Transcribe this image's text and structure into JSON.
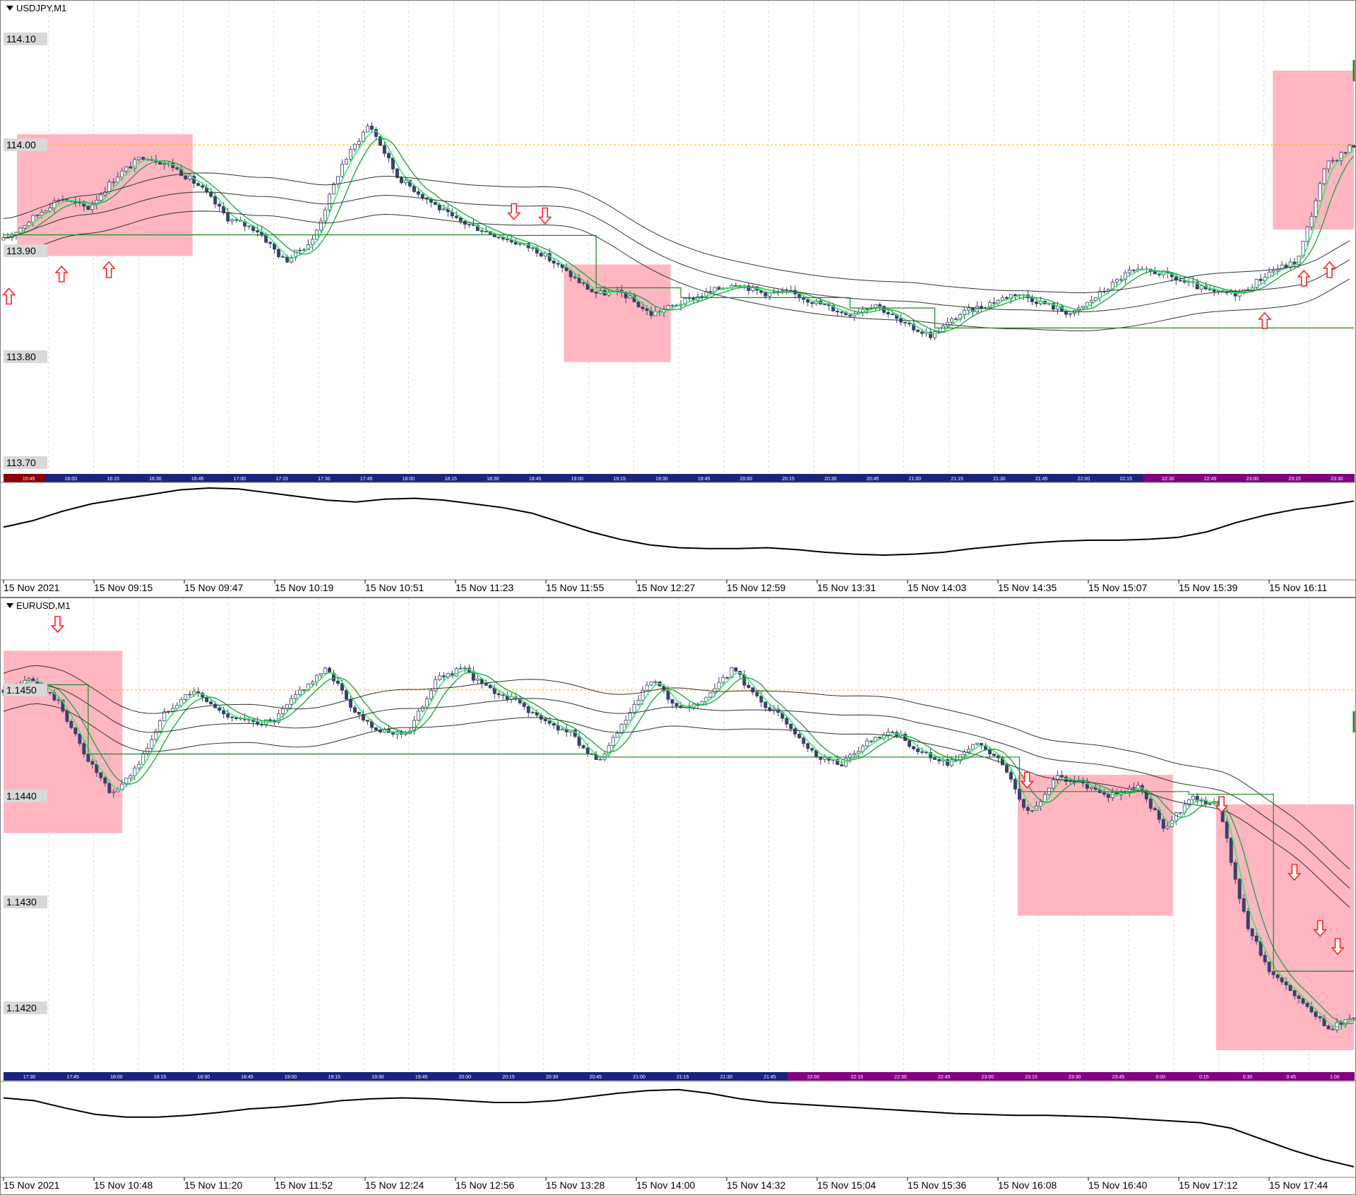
{
  "colors": {
    "candle": "#3a3f6e",
    "ma_fast": "#33ee66",
    "ma_slow": "#22aa44",
    "envelope": "#333333",
    "step_line": "#1a8a1a",
    "zone": "#ffb6c1",
    "arrow": "#ff2222",
    "price_level": "#ffb000",
    "session_bar_a": "#1a237e",
    "session_bar_b": "#800080"
  },
  "icons": {
    "up_arrow": "up-arrow-icon",
    "down_arrow": "down-arrow-icon",
    "collapse": "triangle-down-icon"
  },
  "charts": [
    {
      "symbol": "USDJPY,M1",
      "y_labels": [
        "114.10",
        "114.00",
        "113.90",
        "113.80",
        "113.70"
      ],
      "y_values": [
        114.1,
        114.0,
        113.9,
        113.8,
        113.7
      ],
      "price_line": 114.0,
      "session_labels": [
        "15:45",
        "16:00",
        "16:15",
        "16:30",
        "16:45",
        "17:00",
        "17:15",
        "17:30",
        "17:45",
        "18:00",
        "18:15",
        "18:30",
        "18:45",
        "19:00",
        "19:15",
        "19:30",
        "19:45",
        "20:00",
        "20:15",
        "20:30",
        "20:45",
        "21:00",
        "21:15",
        "21:30",
        "21:45",
        "22:00",
        "22:15",
        "22:30",
        "22:45",
        "23:00",
        "23:15",
        "23:30"
      ],
      "time_labels": [
        "15 Nov 2021",
        "15 Nov 09:15",
        "15 Nov 09:47",
        "15 Nov 10:19",
        "15 Nov 10:51",
        "15 Nov 11:23",
        "15 Nov 11:55",
        "15 Nov 12:27",
        "15 Nov 12:59",
        "15 Nov 13:31",
        "15 Nov 14:03",
        "15 Nov 14:35",
        "15 Nov 15:07",
        "15 Nov 15:39",
        "15 Nov 16:11"
      ],
      "price_path": [
        113.91,
        113.93,
        113.95,
        113.94,
        113.97,
        113.99,
        113.98,
        113.96,
        113.93,
        113.92,
        113.89,
        113.91,
        113.98,
        114.02,
        113.97,
        113.95,
        113.93,
        113.92,
        113.91,
        113.9,
        113.88,
        113.86,
        113.86,
        113.84,
        113.85,
        113.86,
        113.87,
        113.86,
        113.86,
        113.85,
        113.84,
        113.85,
        113.83,
        113.82,
        113.84,
        113.85,
        113.86,
        113.85,
        113.84,
        113.86,
        113.88,
        113.88,
        113.87,
        113.86,
        113.86,
        113.88,
        113.89,
        113.98,
        114.0
      ],
      "oscillator": [
        0.55,
        0.62,
        0.72,
        0.8,
        0.85,
        0.9,
        0.95,
        0.97,
        0.96,
        0.92,
        0.88,
        0.84,
        0.82,
        0.85,
        0.86,
        0.84,
        0.8,
        0.76,
        0.7,
        0.6,
        0.5,
        0.42,
        0.36,
        0.33,
        0.32,
        0.32,
        0.33,
        0.31,
        0.28,
        0.26,
        0.25,
        0.26,
        0.28,
        0.32,
        0.35,
        0.38,
        0.4,
        0.41,
        0.41,
        0.42,
        0.44,
        0.5,
        0.6,
        0.68,
        0.74,
        0.78,
        0.83
      ],
      "zones": [
        {
          "t0": 0.01,
          "t1": 0.14,
          "p_top": 114.01,
          "p_bot": 113.895
        },
        {
          "t0": 0.415,
          "t1": 0.494,
          "p_top": 113.887,
          "p_bot": 113.795
        },
        {
          "t0": 0.94,
          "t1": 1.0,
          "p_top": 114.07,
          "p_bot": 113.92
        }
      ],
      "arrows": [
        {
          "dir": "up",
          "t": 0.004,
          "p": 113.857
        },
        {
          "dir": "up",
          "t": 0.043,
          "p": 113.878
        },
        {
          "dir": "up",
          "t": 0.078,
          "p": 113.882
        },
        {
          "dir": "down",
          "t": 0.378,
          "p": 113.937
        },
        {
          "dir": "down",
          "t": 0.401,
          "p": 113.933
        },
        {
          "dir": "up",
          "t": 0.934,
          "p": 113.834
        },
        {
          "dir": "up",
          "t": 0.963,
          "p": 113.874
        },
        {
          "dir": "up",
          "t": 0.982,
          "p": 113.882
        }
      ]
    },
    {
      "symbol": "EURUSD,M1",
      "y_labels": [
        "1.1450",
        "1.1440",
        "1.1430",
        "1.1420"
      ],
      "y_values": [
        1.145,
        1.144,
        1.143,
        1.142
      ],
      "price_line": 1.145,
      "session_labels": [
        "17:30",
        "17:45",
        "18:00",
        "18:15",
        "18:30",
        "18:45",
        "19:00",
        "19:15",
        "19:30",
        "19:45",
        "20:00",
        "20:15",
        "20:30",
        "20:45",
        "21:00",
        "21:15",
        "21:30",
        "21:45",
        "22:00",
        "22:15",
        "22:30",
        "22:45",
        "23:00",
        "23:15",
        "23:30",
        "23:45",
        "0:00",
        "0:15",
        "0:30",
        "0:45",
        "1:00"
      ],
      "time_labels": [
        "15 Nov 2021",
        "15 Nov 10:48",
        "15 Nov 11:20",
        "15 Nov 11:52",
        "15 Nov 12:24",
        "15 Nov 12:56",
        "15 Nov 13:28",
        "15 Nov 14:00",
        "15 Nov 14:32",
        "15 Nov 15:04",
        "15 Nov 15:36",
        "15 Nov 16:08",
        "15 Nov 16:40",
        "15 Nov 17:12",
        "15 Nov 17:44"
      ],
      "price_path": [
        1.145,
        1.1451,
        1.1449,
        1.1444,
        1.144,
        1.1443,
        1.1448,
        1.145,
        1.1448,
        1.1447,
        1.1447,
        1.145,
        1.1452,
        1.1448,
        1.1446,
        1.1446,
        1.1451,
        1.1452,
        1.145,
        1.1449,
        1.1447,
        1.1446,
        1.1443,
        1.1447,
        1.1451,
        1.1448,
        1.1449,
        1.1452,
        1.1449,
        1.1447,
        1.1444,
        1.1443,
        1.1445,
        1.1446,
        1.1444,
        1.1443,
        1.1445,
        1.1443,
        1.1438,
        1.1442,
        1.1441,
        1.144,
        1.1441,
        1.1437,
        1.144,
        1.1439,
        1.1428,
        1.1423,
        1.1421,
        1.1418,
        1.1419
      ],
      "oscillator": [
        0.85,
        0.82,
        0.74,
        0.67,
        0.64,
        0.64,
        0.66,
        0.69,
        0.73,
        0.75,
        0.78,
        0.82,
        0.84,
        0.85,
        0.84,
        0.82,
        0.8,
        0.8,
        0.82,
        0.86,
        0.9,
        0.93,
        0.94,
        0.9,
        0.84,
        0.8,
        0.78,
        0.76,
        0.74,
        0.72,
        0.7,
        0.68,
        0.67,
        0.66,
        0.66,
        0.65,
        0.64,
        0.62,
        0.6,
        0.58,
        0.52,
        0.4,
        0.28,
        0.18,
        0.1
      ],
      "zones": [
        {
          "t0": 0.0,
          "t1": 0.088,
          "p_top": 1.14537,
          "p_bot": 1.14365
        },
        {
          "t0": 0.751,
          "t1": 0.866,
          "p_top": 1.1442,
          "p_bot": 1.14287
        },
        {
          "t0": 0.898,
          "t1": 1.0,
          "p_top": 1.14392,
          "p_bot": 1.1416
        }
      ],
      "arrows": [
        {
          "dir": "down",
          "t": 0.04,
          "p": 1.14562
        },
        {
          "dir": "down",
          "t": 0.758,
          "p": 1.14415
        },
        {
          "dir": "down",
          "t": 0.902,
          "p": 1.14392
        },
        {
          "dir": "down",
          "t": 0.956,
          "p": 1.14328
        },
        {
          "dir": "down",
          "t": 0.975,
          "p": 1.14275
        },
        {
          "dir": "down",
          "t": 0.988,
          "p": 1.14258
        }
      ]
    }
  ]
}
